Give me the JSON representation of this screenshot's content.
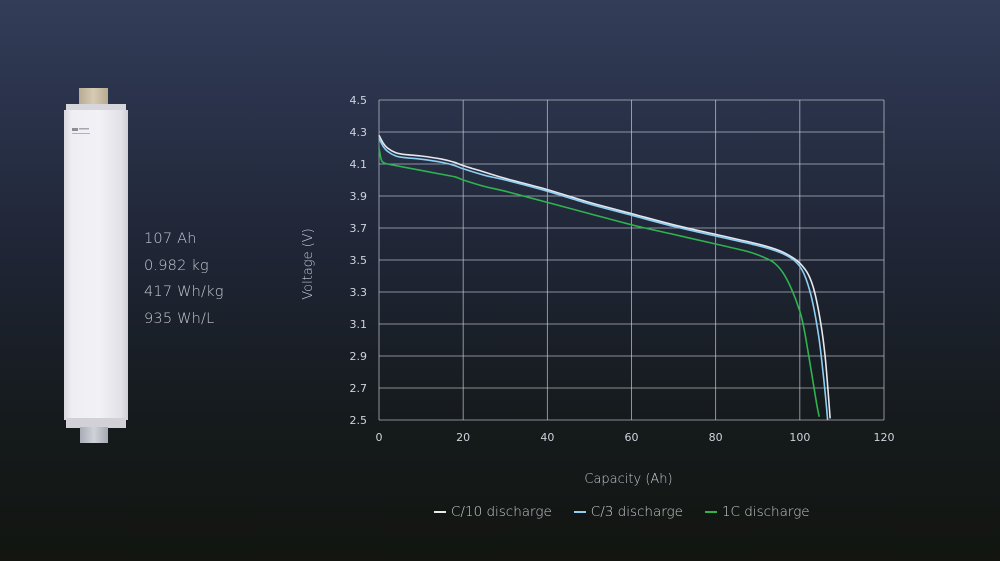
{
  "specs": {
    "capacity": "107 Ah",
    "mass": "0.982 kg",
    "gravimetric_energy": "417 Wh/kg",
    "volumetric_energy": "935 Wh/L"
  },
  "colors": {
    "grid": "#c8ccd6",
    "c10": "#e6e8ee",
    "c3": "#8ccff2",
    "c1": "#2fb34f",
    "cell_body": "#e9e8ee",
    "tab_top": "#cdbfa6",
    "tab_bottom": "#b6b9c1"
  },
  "chart_data": {
    "type": "line",
    "title": "",
    "xlabel": "Capacity (Ah)",
    "ylabel": "Voltage (V)",
    "xlim": [
      0,
      120
    ],
    "ylim": [
      2.5,
      4.5
    ],
    "xticks": [
      0,
      20,
      40,
      60,
      80,
      100,
      120
    ],
    "yticks": [
      2.5,
      2.7,
      2.9,
      3.1,
      3.3,
      3.5,
      3.7,
      3.9,
      4.1,
      4.3,
      4.5
    ],
    "grid": true,
    "legend_position": "bottom",
    "series": [
      {
        "name": "C/10 discharge",
        "color_key": "c10",
        "x": [
          0,
          1,
          2,
          4,
          6,
          10,
          15,
          18,
          20,
          25,
          30,
          40,
          50,
          60,
          70,
          80,
          90,
          95,
          98,
          100,
          102,
          103.5,
          105,
          106,
          106.8,
          107.2
        ],
        "y": [
          4.28,
          4.23,
          4.2,
          4.17,
          4.16,
          4.15,
          4.13,
          4.11,
          4.09,
          4.05,
          4.01,
          3.94,
          3.86,
          3.79,
          3.72,
          3.66,
          3.6,
          3.56,
          3.52,
          3.48,
          3.41,
          3.3,
          3.1,
          2.9,
          2.65,
          2.51
        ]
      },
      {
        "name": "C/3 discharge",
        "color_key": "c3",
        "x": [
          0,
          1,
          2,
          4,
          6,
          10,
          15,
          18,
          20,
          25,
          30,
          40,
          50,
          60,
          70,
          80,
          90,
          95,
          98,
          100,
          101.5,
          103,
          104.5,
          105.5,
          106.2,
          106.6
        ],
        "y": [
          4.26,
          4.21,
          4.18,
          4.15,
          4.14,
          4.13,
          4.11,
          4.09,
          4.07,
          4.03,
          4.0,
          3.93,
          3.85,
          3.78,
          3.71,
          3.65,
          3.59,
          3.55,
          3.51,
          3.46,
          3.38,
          3.24,
          3.02,
          2.8,
          2.62,
          2.5
        ]
      },
      {
        "name": "1C discharge",
        "color_key": "c1",
        "x": [
          0,
          0.5,
          1,
          2,
          4,
          8,
          14,
          18,
          20,
          25,
          30,
          40,
          50,
          60,
          70,
          80,
          88,
          92,
          94,
          96,
          98,
          100,
          101,
          102,
          103,
          104,
          104.6
        ],
        "y": [
          4.2,
          4.13,
          4.11,
          4.1,
          4.09,
          4.07,
          4.04,
          4.02,
          4.0,
          3.96,
          3.93,
          3.86,
          3.79,
          3.72,
          3.66,
          3.6,
          3.55,
          3.51,
          3.48,
          3.42,
          3.32,
          3.18,
          3.07,
          2.92,
          2.76,
          2.6,
          2.52
        ]
      }
    ]
  }
}
